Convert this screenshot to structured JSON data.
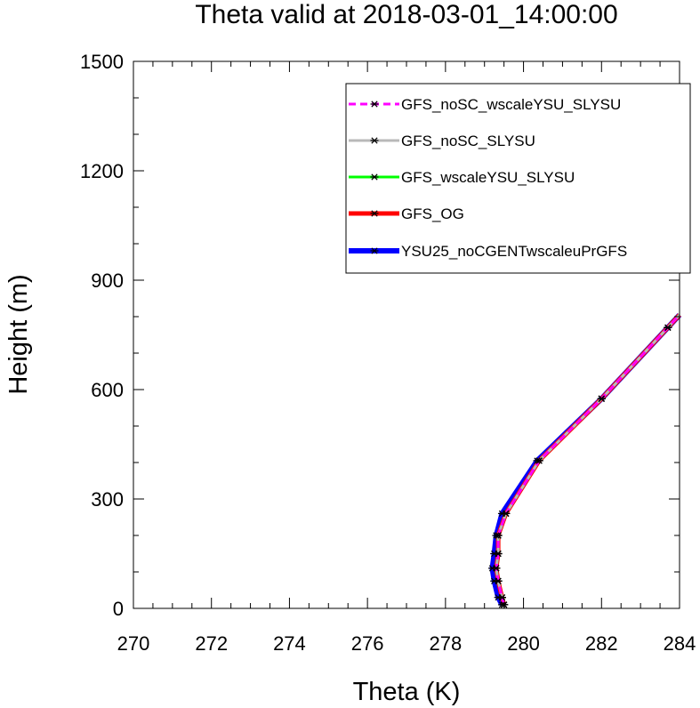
{
  "chart_data": {
    "type": "line",
    "title": "Theta valid at 2018-03-01_14:00:00",
    "xlabel": "Theta (K)",
    "ylabel": "Height (m)",
    "xlim": [
      270,
      284
    ],
    "ylim": [
      0,
      1500
    ],
    "x_ticks": [
      "270",
      "272",
      "274",
      "276",
      "278",
      "280",
      "282",
      "284"
    ],
    "y_ticks": [
      "0",
      "300",
      "600",
      "900",
      "1200",
      "1500"
    ],
    "legend_position": "top-right",
    "series": [
      {
        "name": "GFS_noSC_wscaleYSU_SLYSU",
        "color": "#ff00ff",
        "dash": "dashed",
        "x": [
          279.5,
          279.45,
          279.35,
          279.3,
          279.35,
          279.35,
          279.55,
          280.4,
          282.0,
          283.7,
          284.0
        ],
        "y": [
          10,
          30,
          75,
          110,
          150,
          200,
          260,
          405,
          575,
          770,
          805
        ]
      },
      {
        "name": "GFS_noSC_SLYSU",
        "color": "#b9b9b9",
        "dash": "solid",
        "x": [
          279.5,
          279.45,
          279.35,
          279.3,
          279.35,
          279.35,
          279.55,
          280.4,
          282.0,
          283.7,
          284.0
        ],
        "y": [
          10,
          30,
          75,
          110,
          150,
          200,
          260,
          405,
          575,
          770,
          805
        ]
      },
      {
        "name": "GFS_wscaleYSU_SLYSU",
        "color": "#00ff00",
        "dash": "solid",
        "x": [
          279.5,
          279.45,
          279.35,
          279.3,
          279.35,
          279.35,
          279.55,
          280.4,
          282.0,
          283.7,
          284.0
        ],
        "y": [
          10,
          30,
          75,
          110,
          150,
          200,
          260,
          405,
          575,
          770,
          805
        ]
      },
      {
        "name": "GFS_OG",
        "color": "#ff0000",
        "dash": "solid",
        "x": [
          279.5,
          279.45,
          279.35,
          279.3,
          279.35,
          279.35,
          279.55,
          280.4,
          282.0,
          283.7,
          284.0
        ],
        "y": [
          10,
          30,
          75,
          110,
          150,
          200,
          260,
          405,
          575,
          770,
          805
        ]
      },
      {
        "name": "YSU25_noCGENTwscaleuPrGFS",
        "color": "#0000ff",
        "dash": "solid",
        "x": [
          279.45,
          279.35,
          279.25,
          279.2,
          279.25,
          279.3,
          279.45,
          280.35,
          282.0,
          283.7,
          284.0
        ],
        "y": [
          10,
          30,
          75,
          110,
          150,
          200,
          260,
          405,
          575,
          770,
          805
        ]
      }
    ]
  }
}
